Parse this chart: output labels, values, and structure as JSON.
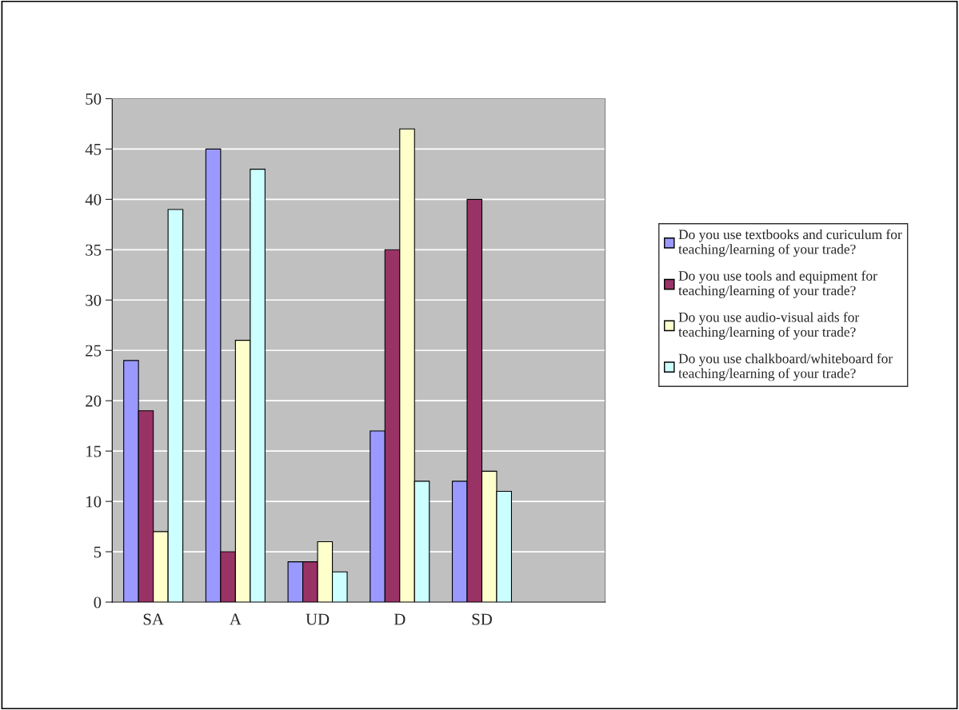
{
  "chart_data": {
    "type": "bar",
    "categories": [
      "SA",
      "A",
      "UD",
      "D",
      "SD",
      null
    ],
    "series": [
      {
        "name": "Do you use textbooks and curiculum for teaching/learning of your trade?",
        "color": "#9999ff",
        "values": [
          24,
          45,
          4,
          17,
          12,
          null
        ]
      },
      {
        "name": "Do you use tools and equipment for teaching/learning of your trade?",
        "color": "#993366",
        "values": [
          19,
          5,
          4,
          35,
          40,
          null
        ]
      },
      {
        "name": "Do you use audio-visual aids for teaching/learning of your trade?",
        "color": "#ffffcc",
        "values": [
          7,
          26,
          6,
          47,
          13,
          null
        ]
      },
      {
        "name": "Do you use chalkboard/whiteboard for teaching/learning of your trade?",
        "color": "#ccffff",
        "values": [
          39,
          43,
          3,
          12,
          11,
          null
        ]
      }
    ],
    "ylim": [
      0,
      50
    ],
    "yticks": [
      0,
      5,
      10,
      15,
      20,
      25,
      30,
      35,
      40,
      45,
      50
    ],
    "grid": "y",
    "legend": "right"
  }
}
